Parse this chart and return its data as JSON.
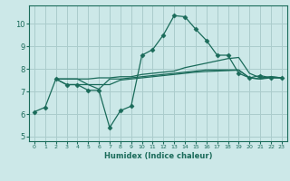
{
  "xlabel": "Humidex (Indice chaleur)",
  "bg_color": "#cce8e8",
  "grid_color": "#aacccc",
  "line_color": "#1a6b5a",
  "xlim": [
    -0.5,
    23.5
  ],
  "ylim": [
    4.8,
    10.8
  ],
  "yticks": [
    5,
    6,
    7,
    8,
    9,
    10
  ],
  "xticks": [
    0,
    1,
    2,
    3,
    4,
    5,
    6,
    7,
    8,
    9,
    10,
    11,
    12,
    13,
    14,
    15,
    16,
    17,
    18,
    19,
    20,
    21,
    22,
    23
  ],
  "lines": [
    {
      "x": [
        0,
        1,
        2,
        3,
        4,
        5,
        6,
        7,
        8,
        9,
        10,
        11,
        12,
        13,
        14,
        15,
        16,
        17,
        18,
        19,
        20,
        21,
        22,
        23
      ],
      "y": [
        6.1,
        6.3,
        7.55,
        7.3,
        7.3,
        7.05,
        7.05,
        5.4,
        6.15,
        6.35,
        8.6,
        8.85,
        9.5,
        10.35,
        10.3,
        9.75,
        9.25,
        8.6,
        8.6,
        7.8,
        7.6,
        7.7,
        7.6,
        7.6
      ],
      "marker": true
    },
    {
      "x": [
        2,
        3,
        4,
        5,
        6,
        7,
        8,
        9,
        10,
        11,
        12,
        13,
        14,
        15,
        16,
        17,
        18,
        19,
        20,
        21,
        22,
        23
      ],
      "y": [
        7.55,
        7.55,
        7.55,
        7.55,
        7.6,
        7.6,
        7.65,
        7.65,
        7.75,
        7.8,
        7.85,
        7.9,
        8.05,
        8.15,
        8.25,
        8.35,
        8.45,
        8.5,
        7.8,
        7.6,
        7.65,
        7.6
      ],
      "marker": false
    },
    {
      "x": [
        2,
        3,
        4,
        5,
        6,
        7,
        8,
        9,
        10,
        11,
        12,
        13,
        14,
        15,
        16,
        17,
        18,
        19,
        20,
        21,
        22,
        23
      ],
      "y": [
        7.55,
        7.3,
        7.3,
        7.3,
        7.1,
        7.55,
        7.55,
        7.6,
        7.65,
        7.7,
        7.75,
        7.8,
        7.85,
        7.9,
        7.95,
        7.95,
        7.95,
        7.95,
        7.6,
        7.55,
        7.6,
        7.6
      ],
      "marker": false
    },
    {
      "x": [
        2,
        3,
        4,
        5,
        6,
        7,
        8,
        9,
        10,
        11,
        12,
        13,
        14,
        15,
        16,
        17,
        18,
        19,
        20,
        21,
        22,
        23
      ],
      "y": [
        7.55,
        7.55,
        7.55,
        7.3,
        7.3,
        7.3,
        7.5,
        7.55,
        7.6,
        7.65,
        7.7,
        7.75,
        7.8,
        7.85,
        7.88,
        7.9,
        7.92,
        7.94,
        7.6,
        7.55,
        7.65,
        7.6
      ],
      "marker": false
    }
  ]
}
